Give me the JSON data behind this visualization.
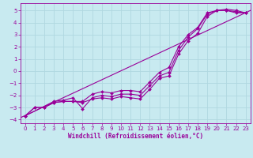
{
  "background_color": "#c8eaf0",
  "grid_color": "#b0d8e0",
  "line_color": "#990099",
  "marker": "D",
  "marker_size": 2,
  "xlabel": "Windchill (Refroidissement éolien,°C)",
  "xlim": [
    -0.5,
    23.5
  ],
  "ylim": [
    -4.3,
    5.6
  ],
  "xticks": [
    0,
    1,
    2,
    3,
    4,
    5,
    6,
    7,
    8,
    9,
    10,
    11,
    12,
    13,
    14,
    15,
    16,
    17,
    18,
    19,
    20,
    21,
    22,
    23
  ],
  "yticks": [
    -4,
    -3,
    -2,
    -1,
    0,
    1,
    2,
    3,
    4,
    5
  ],
  "line1_x": [
    0,
    1,
    2,
    3,
    4,
    5,
    6,
    7,
    8,
    9,
    10,
    11,
    12,
    13,
    14,
    15,
    16,
    17,
    18,
    19,
    20,
    21,
    22,
    23
  ],
  "line1_y": [
    -3.7,
    -3.0,
    -3.0,
    -2.6,
    -2.5,
    -2.5,
    -2.6,
    -2.3,
    -2.2,
    -2.3,
    -2.1,
    -2.2,
    -2.3,
    -1.5,
    -0.6,
    -0.4,
    1.4,
    2.5,
    3.1,
    4.5,
    5.0,
    5.0,
    4.8,
    4.8
  ],
  "line2_x": [
    0,
    3,
    4,
    5,
    6,
    7,
    8,
    9,
    10,
    11,
    12,
    13,
    14,
    15,
    16,
    17,
    18,
    19,
    20,
    21,
    22,
    23
  ],
  "line2_y": [
    -3.7,
    -2.5,
    -2.4,
    -2.2,
    -3.1,
    -2.2,
    -2.0,
    -2.1,
    -1.9,
    -1.9,
    -2.0,
    -1.2,
    -0.4,
    -0.1,
    1.7,
    2.8,
    3.5,
    4.7,
    5.0,
    5.0,
    4.9,
    4.8
  ],
  "line3_x": [
    0,
    1,
    2,
    3,
    4,
    5,
    6,
    7,
    8,
    9,
    10,
    11,
    12,
    13,
    14,
    15,
    16,
    17,
    18,
    19,
    20,
    21,
    22,
    23
  ],
  "line3_y": [
    -3.7,
    -3.0,
    -3.0,
    -2.6,
    -2.5,
    -2.5,
    -2.5,
    -1.9,
    -1.7,
    -1.8,
    -1.6,
    -1.6,
    -1.7,
    -0.9,
    -0.1,
    0.3,
    2.0,
    3.0,
    3.6,
    4.8,
    5.0,
    5.1,
    5.0,
    4.8
  ],
  "xlabel_fontsize": 5.5,
  "tick_fontsize": 5,
  "lw": 0.8
}
